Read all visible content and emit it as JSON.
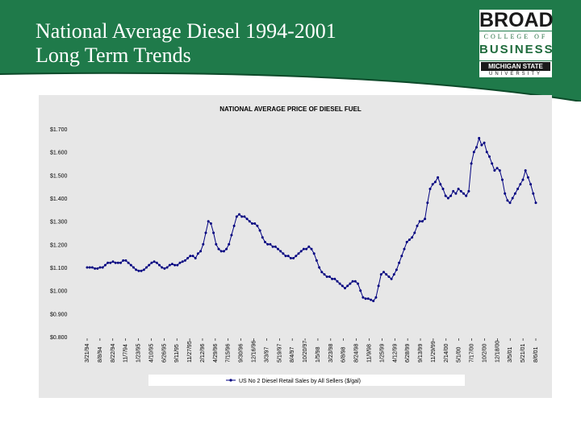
{
  "slide": {
    "title_line1": "National Average Diesel 1994-2001",
    "title_line2": "Long Term Trends"
  },
  "logo": {
    "broad": "BROAD",
    "college": "COLLEGE OF",
    "business": "BUSINESS",
    "msu": "MICHIGAN STATE",
    "university": "UNIVERSITY"
  },
  "colors": {
    "header_green": "#1f7a4a",
    "series": "#000080",
    "chart_bg": "#e7e7e7"
  },
  "chart_data": {
    "type": "line",
    "title": "NATIONAL AVERAGE PRICE OF DIESEL FUEL",
    "xlabel": "",
    "ylabel": "",
    "ylim": [
      0.8,
      1.7
    ],
    "y_ticks": [
      "$1.700",
      "$1.600",
      "$1.500",
      "$1.400",
      "$1.300",
      "$1.200",
      "$1.100",
      "$1.000",
      "$0.900",
      "$0.800"
    ],
    "x_tick_labels": [
      "3/21/94",
      "8/8/94",
      "8/22/94",
      "11/7/94",
      "1/23/95",
      "4/10/95",
      "6/26/95",
      "9/11/95",
      "11/27/95",
      "2/12/96",
      "4/29/96",
      "7/15/96",
      "9/30/96",
      "12/16/96",
      "3/3/97",
      "5/19/97",
      "8/4/97",
      "10/20/97",
      "1/5/98",
      "3/23/98",
      "6/8/98",
      "8/24/98",
      "11/9/98",
      "1/25/99",
      "4/12/99",
      "6/28/99",
      "9/13/99",
      "11/29/99",
      "2/14/00",
      "5/1/00",
      "7/17/00",
      "10/2/00",
      "12/18/00",
      "3/5/01",
      "5/21/01",
      "8/6/01"
    ],
    "grid": false,
    "legend_position": "bottom",
    "series": [
      {
        "name": "US No 2 Diesel Retail Sales by All Sellers ($/gal)",
        "values": [
          1.1,
          1.1,
          1.1,
          1.095,
          1.095,
          1.1,
          1.1,
          1.11,
          1.12,
          1.12,
          1.125,
          1.12,
          1.12,
          1.12,
          1.13,
          1.13,
          1.12,
          1.11,
          1.1,
          1.09,
          1.085,
          1.085,
          1.09,
          1.1,
          1.11,
          1.12,
          1.125,
          1.12,
          1.11,
          1.1,
          1.095,
          1.1,
          1.11,
          1.115,
          1.11,
          1.11,
          1.12,
          1.125,
          1.13,
          1.14,
          1.15,
          1.15,
          1.14,
          1.16,
          1.17,
          1.2,
          1.25,
          1.3,
          1.29,
          1.25,
          1.2,
          1.18,
          1.17,
          1.17,
          1.18,
          1.2,
          1.24,
          1.28,
          1.32,
          1.33,
          1.32,
          1.32,
          1.31,
          1.3,
          1.29,
          1.29,
          1.28,
          1.26,
          1.23,
          1.21,
          1.2,
          1.2,
          1.19,
          1.19,
          1.18,
          1.17,
          1.16,
          1.15,
          1.15,
          1.14,
          1.14,
          1.15,
          1.16,
          1.17,
          1.18,
          1.18,
          1.19,
          1.18,
          1.16,
          1.13,
          1.1,
          1.08,
          1.07,
          1.06,
          1.06,
          1.05,
          1.05,
          1.04,
          1.03,
          1.02,
          1.01,
          1.02,
          1.03,
          1.04,
          1.04,
          1.03,
          1.0,
          0.97,
          0.965,
          0.965,
          0.96,
          0.955,
          0.97,
          1.02,
          1.07,
          1.08,
          1.07,
          1.06,
          1.05,
          1.07,
          1.09,
          1.12,
          1.15,
          1.18,
          1.21,
          1.22,
          1.23,
          1.25,
          1.28,
          1.3,
          1.3,
          1.31,
          1.38,
          1.44,
          1.46,
          1.47,
          1.49,
          1.46,
          1.44,
          1.41,
          1.4,
          1.41,
          1.43,
          1.42,
          1.44,
          1.43,
          1.42,
          1.41,
          1.43,
          1.55,
          1.6,
          1.62,
          1.66,
          1.63,
          1.64,
          1.6,
          1.58,
          1.55,
          1.52,
          1.53,
          1.52,
          1.48,
          1.42,
          1.39,
          1.38,
          1.4,
          1.42,
          1.44,
          1.46,
          1.48,
          1.52,
          1.49,
          1.46,
          1.42,
          1.38
        ]
      }
    ]
  }
}
